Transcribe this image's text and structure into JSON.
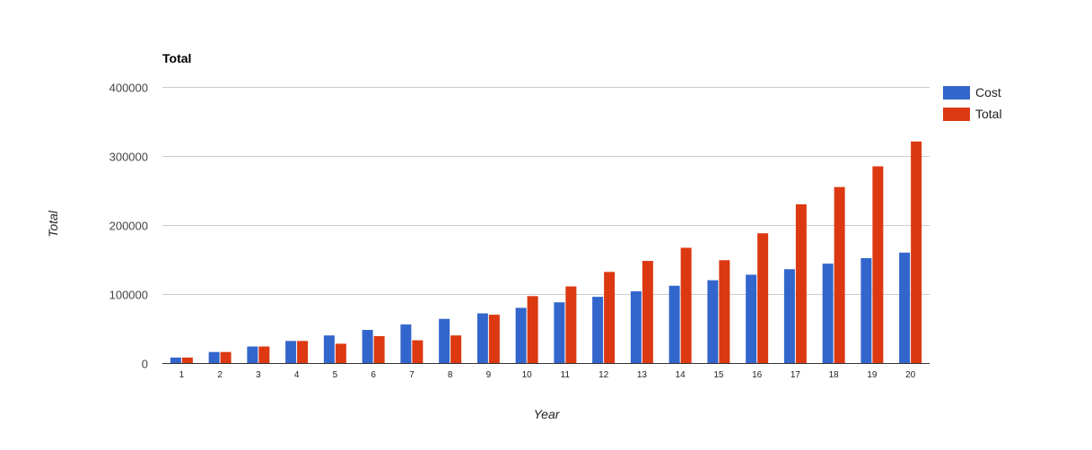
{
  "chart_data": {
    "type": "bar",
    "title": "Total",
    "xlabel": "Year",
    "ylabel": "Total",
    "categories": [
      "1",
      "2",
      "3",
      "4",
      "5",
      "6",
      "7",
      "8",
      "9",
      "10",
      "11",
      "12",
      "13",
      "14",
      "15",
      "16",
      "17",
      "18",
      "19",
      "20"
    ],
    "series": [
      {
        "name": "Cost",
        "color": "#3366cc",
        "values": [
          8000,
          16000,
          24000,
          32000,
          40000,
          48000,
          56000,
          64000,
          72000,
          80000,
          88000,
          96000,
          104000,
          112000,
          120000,
          128000,
          136000,
          144000,
          152000,
          160000
        ]
      },
      {
        "name": "Total",
        "color": "#dc3912",
        "values": [
          8000,
          16000,
          24000,
          32000,
          28000,
          39000,
          33000,
          40000,
          70000,
          97000,
          111000,
          132000,
          148000,
          167000,
          149000,
          188000,
          230000,
          255000,
          285000,
          321000
        ]
      }
    ],
    "ylim": [
      0,
      400000
    ],
    "yticks": [
      "0",
      "100000",
      "200000",
      "300000",
      "400000"
    ],
    "grid": true,
    "legend_position": "right"
  }
}
